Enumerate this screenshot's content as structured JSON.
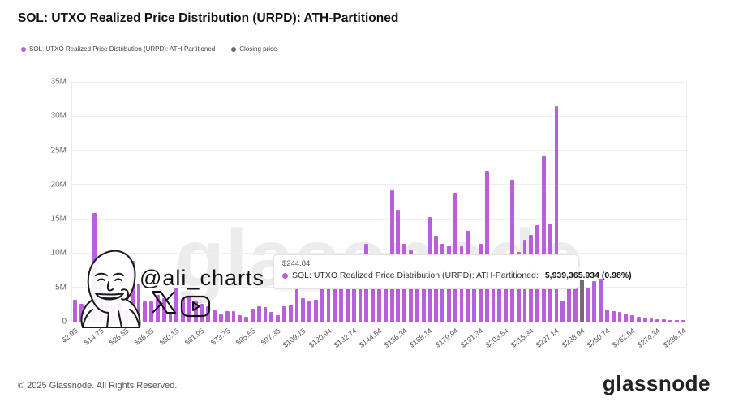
{
  "header": {
    "title": "SOL: UTXO Realized Price Distribution (URPD): ATH-Partitioned"
  },
  "legend": [
    {
      "label": "SOL: UTXO Realized Price Distribution (URPD): ATH-Partitioned",
      "color": "#b95fdd"
    },
    {
      "label": "Closing price",
      "color": "#6e6e6e"
    }
  ],
  "tooltip": {
    "price": "$244.84",
    "series_label": "SOL: UTXO Realized Price Distribution (URPD): ATH-Partitioned:",
    "value": "5,939,365.934 (0.98%)",
    "dot_color": "#b95fdd"
  },
  "annotation": {
    "handle": "@ali_charts"
  },
  "watermark": "glassnode",
  "footer": {
    "copyright": "© 2025 Glassnode. All Rights Reserved.",
    "logo": "glassnode"
  },
  "chart_data": {
    "type": "bar",
    "title": "SOL: UTXO Realized Price Distribution (URPD): ATH-Partitioned",
    "xlabel": "",
    "ylabel": "",
    "values_unit": "millions of SOL",
    "ylim": [
      0,
      35000000
    ],
    "grid": true,
    "legend_position": "top-left",
    "y_ticks": [
      "0",
      "5M",
      "10M",
      "15M",
      "20M",
      "25M",
      "30M",
      "35M"
    ],
    "x_tick_labels": [
      "$2.95",
      "$14.75",
      "$26.55",
      "$38.35",
      "$50.15",
      "$61.95",
      "$73.75",
      "$85.55",
      "$97.35",
      "$109.15",
      "$120.94",
      "$132.74",
      "$144.54",
      "$156.34",
      "$168.14",
      "$179.94",
      "$191.74",
      "$203.54",
      "$215.34",
      "$227.14",
      "$238.94",
      "$250.74",
      "$262.54",
      "$274.34",
      "$286.14"
    ],
    "bin_start_price": 2.95,
    "bin_step_price": 2.95,
    "bar_color": "#b95fdd",
    "closing_price_color": "#6e6e6e",
    "closing_price_index": 80,
    "hovered_index": 82,
    "hovered_price": "$244.84",
    "hovered_value": "5,939,365.934 (0.98%)",
    "values": [
      3.2,
      2.6,
      1.6,
      15.8,
      5.4,
      3.6,
      2.2,
      4.1,
      1.6,
      8.9,
      5.6,
      2.9,
      3.0,
      3.9,
      3.4,
      1.3,
      4.8,
      3.3,
      3.8,
      2.9,
      2.6,
      2.3,
      1.6,
      1.1,
      1.5,
      1.5,
      1.0,
      0.7,
      1.9,
      2.2,
      2.1,
      1.4,
      0.9,
      2.2,
      2.5,
      4.7,
      3.4,
      3.0,
      3.2,
      5.5,
      5.3,
      5.6,
      5.8,
      5.6,
      6.0,
      5.8,
      11.3,
      5.8,
      6.2,
      5.9,
      19.2,
      16.3,
      11.3,
      10.4,
      6.0,
      6.2,
      15.3,
      12.5,
      11.3,
      11.1,
      18.8,
      11.0,
      13.2,
      6.0,
      11.3,
      22.0,
      6.1,
      5.8,
      6.0,
      20.7,
      10.2,
      11.9,
      12.7,
      14.1,
      24.1,
      14.3,
      31.4,
      3.1,
      6.0,
      5.8,
      6.1,
      5.0,
      5.94,
      6.3,
      1.8,
      1.55,
      1.4,
      1.2,
      0.9,
      0.7,
      0.55,
      0.45,
      0.35,
      0.3,
      0.25,
      0.22,
      0.2
    ]
  }
}
